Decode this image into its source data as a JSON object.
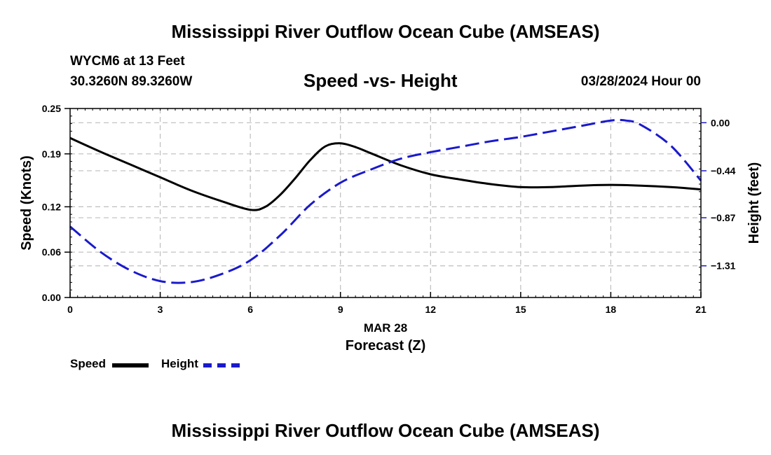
{
  "page_title": "Mississippi River Outflow Ocean Cube (AMSEAS)",
  "footer_title": "Mississippi River Outflow Ocean Cube (AMSEAS)",
  "station": {
    "name_depth": "WYCM6 at 13 Feet",
    "coords": "30.3260N  89.3260W"
  },
  "date_label": "03/28/2024 Hour 00",
  "colors": {
    "speed": "#000000",
    "height": "#1a1acc",
    "grid": "#bdbdbd"
  },
  "legend": {
    "speed_label": "Speed",
    "height_label": "Height"
  },
  "chart_data": {
    "type": "line",
    "title": "Speed -vs- Height",
    "xlabel": "Forecast (Z)",
    "xdate_label": "MAR 28",
    "ylabel_left": "Speed (Knots)",
    "ylabel_right": "Height (feet)",
    "xlim": [
      0,
      21
    ],
    "ylim_left": [
      0,
      0.25
    ],
    "ylim_right": [
      -1.6,
      0.13
    ],
    "x_ticks": [
      0,
      3,
      6,
      9,
      12,
      15,
      18,
      21
    ],
    "x_tick_labels": [
      "0",
      "3",
      "6",
      "9",
      "12",
      "15",
      "18",
      "21"
    ],
    "y_left_ticks": [
      0.0,
      0.06,
      0.12,
      0.19,
      0.25
    ],
    "y_left_tick_labels": [
      "0.00",
      "0.06",
      "0.12",
      "0.19",
      "0.25"
    ],
    "y_right_ticks": [
      0.0,
      -0.44,
      -0.87,
      -1.31
    ],
    "y_right_tick_labels": [
      "0.00",
      "−0.44",
      "−0.87",
      "−1.31"
    ],
    "grid": true,
    "series": [
      {
        "name": "Speed",
        "axis": "left",
        "style": "solid",
        "x": [
          0,
          1,
          2,
          3,
          4,
          5,
          6,
          6.5,
          7,
          7.5,
          8,
          8.5,
          9,
          9.5,
          10,
          11,
          12,
          13,
          14,
          15,
          16,
          17,
          18,
          19,
          20,
          21
        ],
        "values": [
          0.211,
          0.193,
          0.176,
          0.159,
          0.142,
          0.128,
          0.116,
          0.12,
          0.136,
          0.158,
          0.182,
          0.2,
          0.204,
          0.199,
          0.191,
          0.175,
          0.163,
          0.156,
          0.15,
          0.146,
          0.146,
          0.148,
          0.149,
          0.148,
          0.146,
          0.143
        ]
      },
      {
        "name": "Height",
        "axis": "right",
        "style": "dashed",
        "x": [
          0,
          1,
          2,
          3,
          4,
          5,
          6,
          7,
          8,
          9,
          10,
          11,
          12,
          13,
          14,
          15,
          16,
          17,
          18,
          18.5,
          19,
          20,
          21
        ],
        "values": [
          -0.95,
          -1.18,
          -1.35,
          -1.45,
          -1.46,
          -1.39,
          -1.26,
          -1.03,
          -0.75,
          -0.55,
          -0.43,
          -0.33,
          -0.27,
          -0.22,
          -0.17,
          -0.13,
          -0.08,
          -0.03,
          0.02,
          0.02,
          -0.02,
          -0.21,
          -0.53
        ]
      }
    ]
  }
}
